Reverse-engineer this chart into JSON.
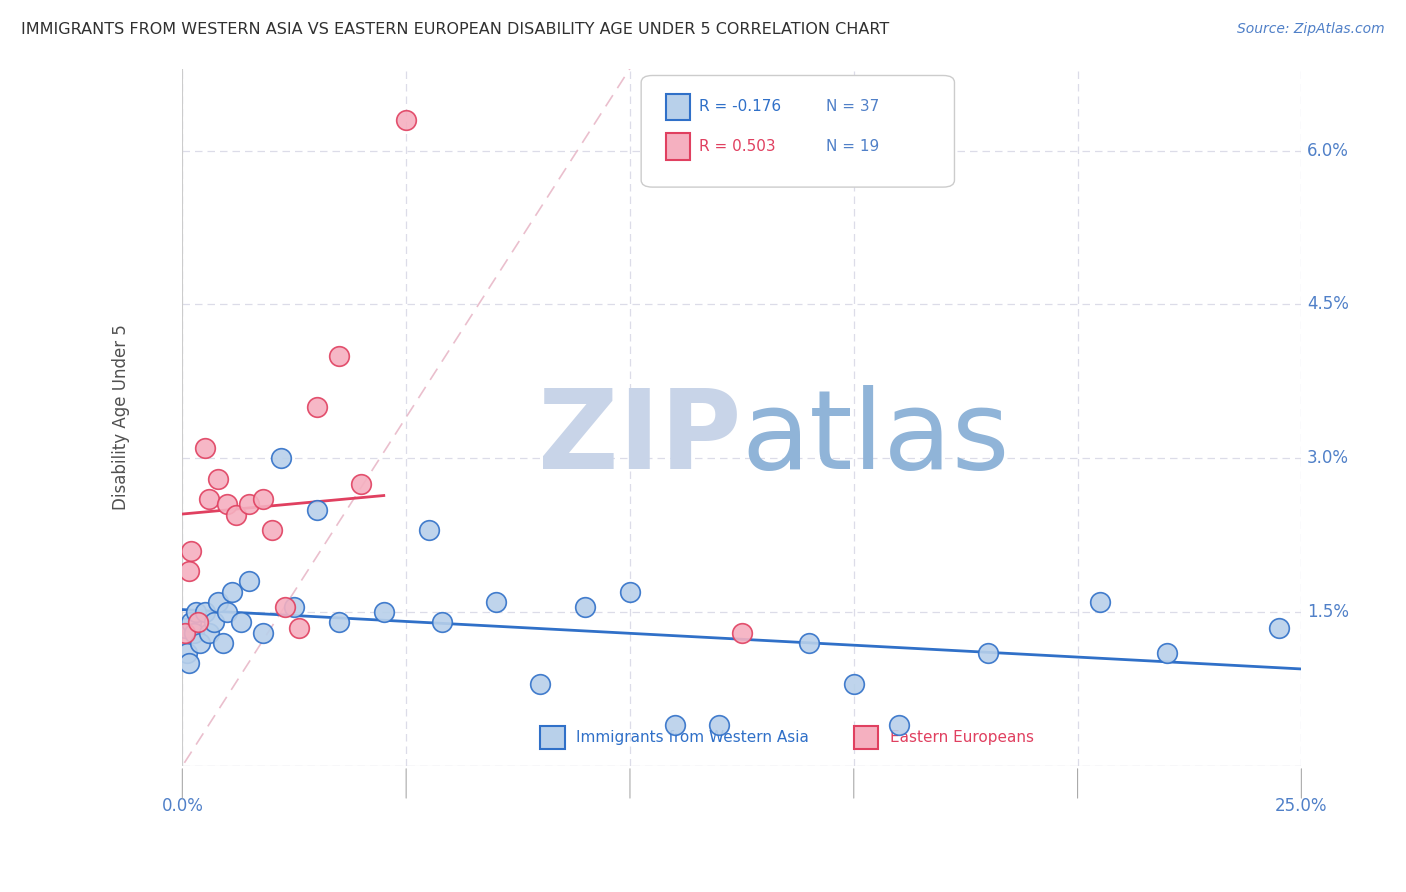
{
  "title": "IMMIGRANTS FROM WESTERN ASIA VS EASTERN EUROPEAN DISABILITY AGE UNDER 5 CORRELATION CHART",
  "source": "Source: ZipAtlas.com",
  "ylabel": "Disability Age Under 5",
  "legend_blue_r": "R = -0.176",
  "legend_blue_n": "N = 37",
  "legend_pink_r": "R = 0.503",
  "legend_pink_n": "N = 19",
  "xlim": [
    0.0,
    25.0
  ],
  "ylim": [
    0.0,
    6.8
  ],
  "yticks": [
    0.0,
    1.5,
    3.0,
    4.5,
    6.0
  ],
  "ytick_labels": [
    "",
    "1.5%",
    "3.0%",
    "4.5%",
    "6.0%"
  ],
  "xtick_vals": [
    0.0,
    5.0,
    10.0,
    15.0,
    20.0,
    25.0
  ],
  "blue_scatter_x": [
    0.05,
    0.1,
    0.15,
    0.2,
    0.25,
    0.3,
    0.4,
    0.5,
    0.6,
    0.7,
    0.8,
    0.9,
    1.0,
    1.1,
    1.3,
    1.5,
    1.8,
    2.2,
    2.5,
    3.0,
    3.5,
    4.5,
    5.5,
    5.8,
    7.0,
    8.0,
    9.0,
    10.0,
    11.0,
    12.0,
    14.0,
    15.0,
    16.0,
    18.0,
    20.5,
    22.0,
    24.5
  ],
  "blue_scatter_y": [
    1.35,
    1.1,
    1.0,
    1.4,
    1.3,
    1.5,
    1.2,
    1.5,
    1.3,
    1.4,
    1.6,
    1.2,
    1.5,
    1.7,
    1.4,
    1.8,
    1.3,
    3.0,
    1.55,
    2.5,
    1.4,
    1.5,
    2.3,
    1.4,
    1.6,
    0.8,
    1.55,
    1.7,
    0.4,
    0.4,
    1.2,
    0.8,
    0.4,
    1.1,
    1.6,
    1.1,
    1.35
  ],
  "pink_scatter_x": [
    0.05,
    0.15,
    0.2,
    0.35,
    0.5,
    0.6,
    0.8,
    1.0,
    1.2,
    1.5,
    1.8,
    2.0,
    2.3,
    2.6,
    3.0,
    3.5,
    4.0,
    5.0,
    12.5
  ],
  "pink_scatter_y": [
    1.3,
    1.9,
    2.1,
    1.4,
    3.1,
    2.6,
    2.8,
    2.55,
    2.45,
    2.55,
    2.6,
    2.3,
    1.55,
    1.35,
    3.5,
    4.0,
    2.75,
    6.3,
    1.3
  ],
  "blue_color": "#b8d0ea",
  "pink_color": "#f5b0c0",
  "blue_line_color": "#3070c8",
  "pink_line_color": "#e04060",
  "diag_color": "#e8b8c8",
  "background_color": "#ffffff",
  "grid_color": "#dcdce8",
  "title_color": "#303030",
  "axis_label_color": "#505050",
  "right_tick_color": "#5080c8",
  "watermark_zip_color": "#c8d4e8",
  "watermark_atlas_color": "#90b4d8"
}
